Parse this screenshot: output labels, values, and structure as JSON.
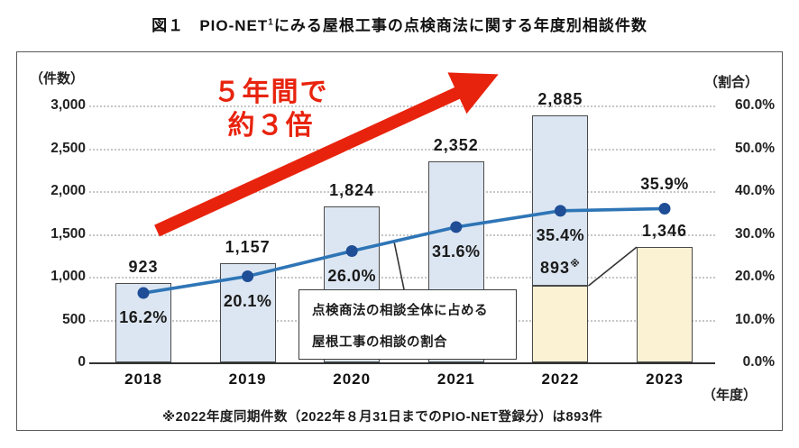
{
  "title": {
    "fig": "図１",
    "pre": "PIO-NET",
    "sup": "1",
    "post": "にみる屋根工事の点検商法に関する年度別相談件数"
  },
  "annotation": {
    "line1": "５年間で",
    "line2": "約３倍"
  },
  "callout": {
    "line1": "点検商法の相談全体に占める",
    "line2": "屋根工事の相談の割合"
  },
  "footnote": "※2022年度同期件数（2022年８月31日までのPIO-NET登録分）は893件",
  "colors": {
    "bar_blue": "#dce6f2",
    "bar_cream": "#fbf1d3",
    "bar_border": "#4a4a4a",
    "line": "#2e75b6",
    "marker": "#1f4e96",
    "red": "#e8230d",
    "grid": "#c6c6c6"
  },
  "chart_data": {
    "type": "bar+line",
    "title": "図１ PIO-NET(1)にみる屋根工事の点検商法に関する年度別相談件数",
    "categories": [
      "2018",
      "2019",
      "2020",
      "2021",
      "2022",
      "2023"
    ],
    "bars": {
      "name": "相談件数（件数）",
      "values": [
        923,
        1157,
        1824,
        2352,
        2885,
        1346
      ],
      "labels": [
        "923",
        "1,157",
        "1,824",
        "2,352",
        "2,885",
        "1,346"
      ],
      "fill": [
        "blue",
        "blue",
        "blue",
        "blue",
        "blue",
        "cream"
      ]
    },
    "partial_2022": {
      "category": "2022",
      "value": 893,
      "label": "893",
      "sup": "※",
      "fill": "cream",
      "note": "2022年度同期件数（2022年８月31日までのPIO-NET登録分）"
    },
    "line": {
      "name": "点検商法の相談全体に占める屋根工事の相談の割合",
      "values": [
        16.2,
        20.1,
        26.0,
        31.6,
        35.4,
        35.9
      ],
      "labels": [
        "16.2%",
        "20.1%",
        "26.0%",
        "31.6%",
        "35.4%",
        "35.9%"
      ]
    },
    "left_axis": {
      "caption": "（件数）",
      "max": 3000,
      "ticks": [
        0,
        500,
        1000,
        1500,
        2000,
        2500,
        3000
      ],
      "tick_labels": [
        "0",
        "500",
        "1,000",
        "1,500",
        "2,000",
        "2,500",
        "3,000"
      ]
    },
    "right_axis": {
      "caption": "（割合）",
      "max": 60,
      "ticks": [
        0,
        10,
        20,
        30,
        40,
        50,
        60
      ],
      "tick_labels": [
        "0.0%",
        "10.0%",
        "20.0%",
        "30.0%",
        "40.0%",
        "50.0%",
        "60.0%"
      ]
    },
    "x_axis_caption": "（年度）",
    "grid": "horizontal dotted",
    "legend_position": "none",
    "annotations": [
      "5年間で約3倍 (red arrow)",
      "点検商法の相談全体に占める屋根工事の相談の割合 (callout)"
    ]
  }
}
